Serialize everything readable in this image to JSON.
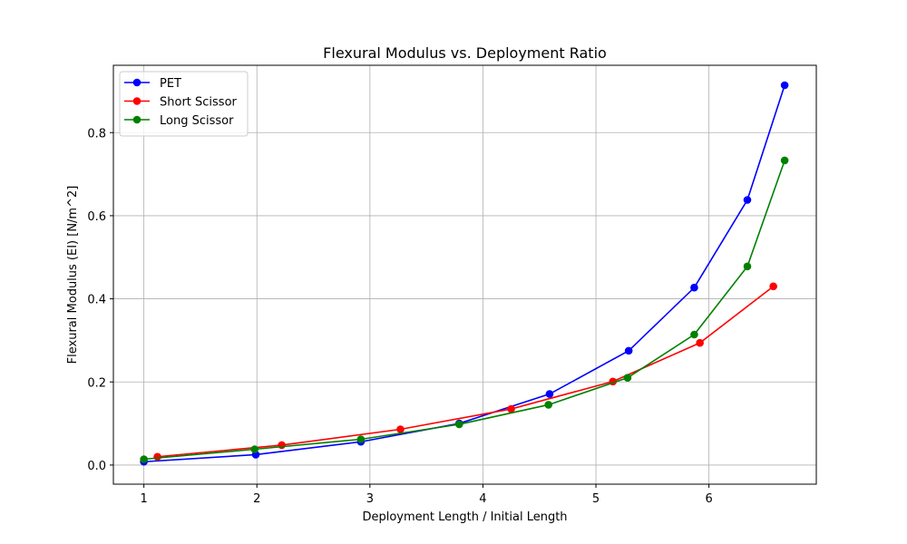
{
  "chart_data": {
    "type": "line",
    "title": "Flexural Modulus vs. Deployment Ratio",
    "xlabel": "Deployment Length / Initial Length",
    "ylabel": "Flexural Modulus (EI) [N/m^2]",
    "xlim": [
      0.73,
      6.95
    ],
    "ylim": [
      -0.046,
      0.962
    ],
    "xticks": [
      1,
      2,
      3,
      4,
      5,
      6
    ],
    "yticks": [
      0.0,
      0.2,
      0.4,
      0.6,
      0.8
    ],
    "ytick_labels": [
      "0.0",
      "0.2",
      "0.4",
      "0.6",
      "0.8"
    ],
    "grid": true,
    "legend_position": "top-left",
    "series": [
      {
        "name": "PET",
        "color": "#0000ff",
        "x": [
          1.0,
          1.99,
          2.92,
          3.79,
          4.59,
          5.29,
          5.87,
          6.34,
          6.67
        ],
        "y": [
          0.008,
          0.025,
          0.056,
          0.1,
          0.171,
          0.275,
          0.427,
          0.638,
          0.914
        ]
      },
      {
        "name": "Short Scissor",
        "color": "#ff0000",
        "x": [
          1.12,
          2.22,
          3.27,
          4.25,
          5.15,
          5.92,
          6.57
        ],
        "y": [
          0.02,
          0.048,
          0.086,
          0.135,
          0.201,
          0.294,
          0.43
        ]
      },
      {
        "name": "Long Scissor",
        "color": "#008000",
        "x": [
          1.0,
          1.98,
          2.92,
          3.79,
          4.58,
          5.28,
          5.87,
          6.34,
          6.67
        ],
        "y": [
          0.014,
          0.038,
          0.062,
          0.098,
          0.145,
          0.21,
          0.314,
          0.478,
          0.733
        ]
      }
    ]
  }
}
